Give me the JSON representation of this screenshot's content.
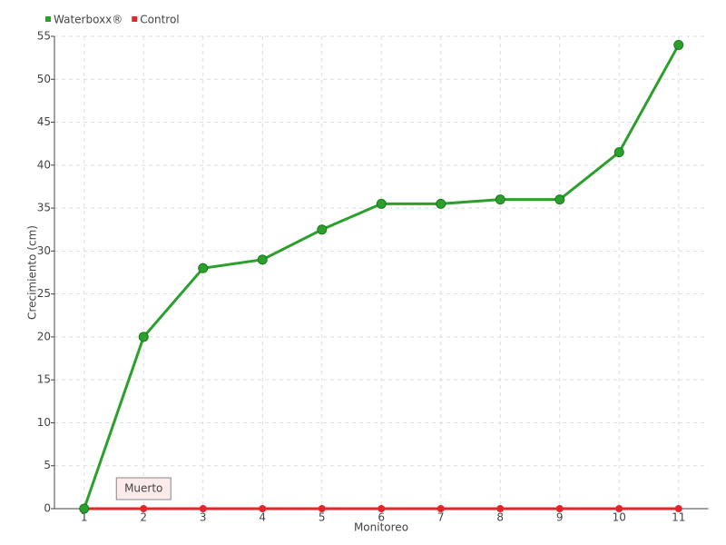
{
  "chart_data": {
    "type": "line",
    "categories": [
      "1",
      "2",
      "3",
      "4",
      "5",
      "6",
      "7",
      "8",
      "9",
      "10",
      "11"
    ],
    "series": [
      {
        "name": "Waterboxx®",
        "color": "#2ca02c",
        "values": [
          0,
          20,
          28,
          29,
          32.5,
          35.5,
          35.5,
          36,
          36,
          41.5,
          54
        ]
      },
      {
        "name": "Control",
        "color": "#e3262b",
        "values": [
          0,
          0,
          0,
          0,
          0,
          0,
          0,
          0,
          0,
          0,
          0
        ]
      }
    ],
    "xlabel": "Monitoreo",
    "ylabel": "Crecimiento (cm)",
    "annotation": "Muerto",
    "ylim": [
      0,
      55
    ],
    "yticks": [
      0,
      5,
      10,
      15,
      20,
      25,
      30,
      35,
      40,
      45,
      50,
      55
    ],
    "grid": true
  }
}
